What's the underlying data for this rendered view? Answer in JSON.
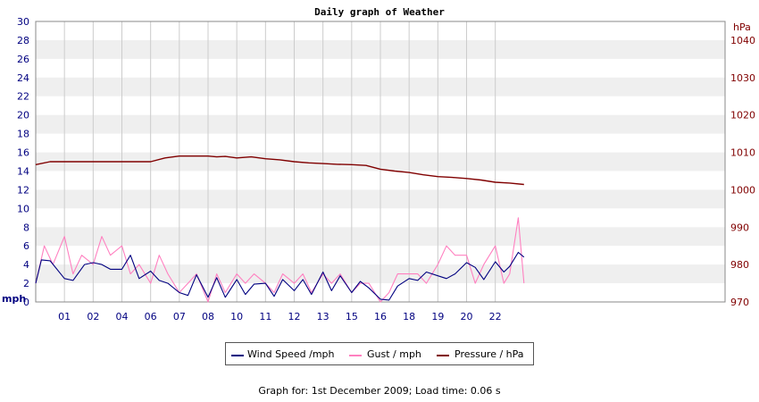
{
  "chart_data": {
    "type": "line",
    "title": "Daily graph of Weather",
    "left_axis": {
      "unit_label": "mph",
      "range": [
        0,
        30
      ],
      "ticks": [
        0,
        2,
        4,
        6,
        8,
        10,
        12,
        14,
        16,
        18,
        20,
        22,
        24,
        26,
        28,
        30
      ]
    },
    "right_axis": {
      "unit_label": "hPa",
      "range": [
        970,
        1045
      ],
      "ticks": [
        970,
        980,
        990,
        1000,
        1010,
        1020,
        1030,
        1040
      ]
    },
    "x_range": [
      0,
      24
    ],
    "x_tick_labels": [
      {
        "t": 1,
        "label": "01"
      },
      {
        "t": 2,
        "label": "02"
      },
      {
        "t": 3,
        "label": "04"
      },
      {
        "t": 4,
        "label": "06"
      },
      {
        "t": 5,
        "label": "07"
      },
      {
        "t": 6,
        "label": "08"
      },
      {
        "t": 7,
        "label": "10"
      },
      {
        "t": 8,
        "label": "11"
      },
      {
        "t": 9,
        "label": "12"
      },
      {
        "t": 10,
        "label": "13"
      },
      {
        "t": 11,
        "label": "15"
      },
      {
        "t": 12,
        "label": "16"
      },
      {
        "t": 13,
        "label": "18"
      },
      {
        "t": 14,
        "label": "19"
      },
      {
        "t": 15,
        "label": "20"
      },
      {
        "t": 16,
        "label": "22"
      }
    ],
    "grid": true,
    "series": [
      {
        "name": "Wind Speed /mph",
        "axis": "left",
        "color": "#000080",
        "x": [
          0,
          0.2,
          0.5,
          1,
          1.3,
          1.7,
          2,
          2.3,
          2.6,
          3,
          3.3,
          3.6,
          4,
          4.3,
          4.6,
          5,
          5.3,
          5.6,
          6,
          6.3,
          6.6,
          7,
          7.3,
          7.6,
          8,
          8.3,
          8.6,
          9,
          9.3,
          9.6,
          10,
          10.3,
          10.6,
          11,
          11.3,
          11.6,
          12,
          12.3,
          12.6,
          13,
          13.3,
          13.6,
          14,
          14.3,
          14.6,
          15,
          15.3,
          15.6,
          16,
          16.3,
          16.5,
          16.8,
          17
        ],
        "y": [
          2,
          4.5,
          4.4,
          2.5,
          2.3,
          4,
          4.2,
          4,
          3.5,
          3.5,
          5,
          2.5,
          3.3,
          2.3,
          2,
          1,
          0.7,
          2.9,
          0.5,
          2.6,
          0.5,
          2.4,
          0.8,
          1.9,
          2,
          0.6,
          2.4,
          1.2,
          2.4,
          0.8,
          3.2,
          1.2,
          2.8,
          1,
          2.2,
          1.5,
          0.3,
          0.2,
          1.7,
          2.5,
          2.3,
          3.2,
          2.8,
          2.5,
          3,
          4.2,
          3.7,
          2.4,
          4.3,
          3.2,
          3.8,
          5.3,
          4.8
        ]
      },
      {
        "name": "Gust / mph",
        "axis": "left",
        "color": "#ff80c0",
        "x": [
          0,
          0.3,
          0.6,
          1,
          1.3,
          1.6,
          2,
          2.3,
          2.6,
          3,
          3.3,
          3.6,
          4,
          4.3,
          4.6,
          5,
          5.3,
          5.6,
          6,
          6.3,
          6.6,
          7,
          7.3,
          7.6,
          8,
          8.3,
          8.6,
          9,
          9.3,
          9.6,
          10,
          10.3,
          10.6,
          11,
          11.3,
          11.6,
          12,
          12.3,
          12.6,
          13,
          13.3,
          13.6,
          14,
          14.3,
          14.6,
          15,
          15.3,
          15.6,
          16,
          16.3,
          16.5,
          16.8,
          17
        ],
        "y": [
          2,
          6,
          4,
          7,
          3,
          5,
          4,
          7,
          5,
          6,
          3,
          4,
          2,
          5,
          3,
          1,
          2,
          3,
          0,
          3,
          1,
          3,
          2,
          3,
          2,
          1,
          3,
          2,
          3,
          1,
          3,
          2,
          3,
          1,
          2,
          2,
          0,
          1,
          3,
          3,
          3,
          2,
          4,
          6,
          5,
          5,
          2,
          4,
          6,
          2,
          3,
          9,
          2
        ]
      },
      {
        "name": "Pressure / hPa",
        "axis": "right",
        "color": "#800000",
        "x": [
          0,
          0.5,
          1,
          2,
          3,
          4,
          4.5,
          5,
          5.5,
          6,
          6.3,
          6.6,
          7,
          7.5,
          8,
          8.5,
          9,
          9.5,
          10,
          10.5,
          11,
          11.5,
          12,
          12.5,
          13,
          13.5,
          14,
          14.5,
          15,
          15.5,
          16,
          16.5,
          17
        ],
        "y": [
          1006.7,
          1007.5,
          1007.5,
          1007.5,
          1007.5,
          1007.5,
          1008.5,
          1009,
          1009,
          1009,
          1008.8,
          1008.9,
          1008.5,
          1008.8,
          1008.3,
          1008,
          1007.5,
          1007.2,
          1007,
          1006.8,
          1006.7,
          1006.5,
          1005.5,
          1005,
          1004.6,
          1004,
          1003.5,
          1003.3,
          1003,
          1002.6,
          1002,
          1001.8,
          1001.4
        ]
      }
    ],
    "legend": {
      "position": "bottom",
      "items": [
        "Wind Speed /mph",
        "Gust / mph",
        "Pressure / hPa"
      ]
    }
  },
  "footer_text": "Graph for: 1st December 2009; Load time: 0.06 s"
}
